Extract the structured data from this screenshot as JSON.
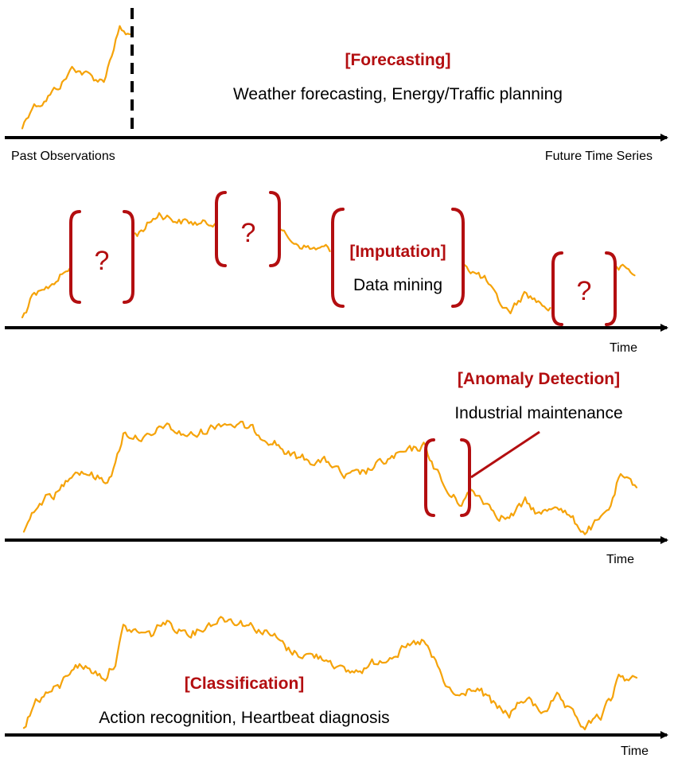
{
  "forecasting": {
    "title": "[Forecasting]",
    "description": "Weather forecasting, Energy/Traffic planning",
    "left_label": "Past Observations",
    "right_label": "Future Time Series"
  },
  "imputation": {
    "title": "[Imputation]",
    "description": "Data mining",
    "missing_marker": "?",
    "axis_label": "Time"
  },
  "anomaly": {
    "title": "[Anomaly Detection]",
    "description": "Industrial maintenance",
    "axis_label": "Time"
  },
  "classification": {
    "title": "[Classification]",
    "description": "Action recognition, Heartbeat diagnosis",
    "axis_label": "Time"
  },
  "colors": {
    "series": "#f5a30a",
    "accent": "#b30e10",
    "axis": "#000000"
  }
}
